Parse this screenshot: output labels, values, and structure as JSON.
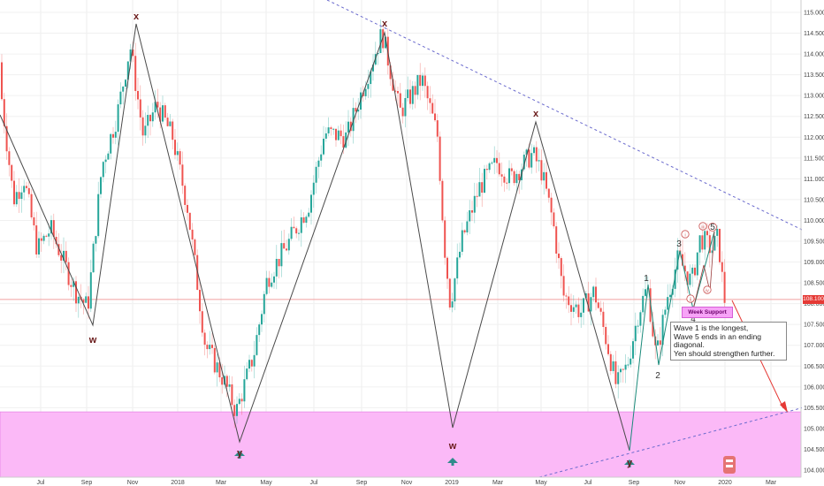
{
  "chart_data": {
    "type": "candlestick",
    "symbol_context": "USD/JPY",
    "x_tick_labels": [
      "Jul",
      "Sep",
      "Nov",
      "2018",
      "Mar",
      "May",
      "Jul",
      "Sep",
      "Nov",
      "2019",
      "Mar",
      "May",
      "Jul",
      "Sep",
      "Nov",
      "2020",
      "Mar"
    ],
    "y_tick_labels": [
      "104.000",
      "104.500",
      "105.000",
      "105.500",
      "106.000",
      "106.500",
      "107.000",
      "107.500",
      "108.000",
      "108.500",
      "109.000",
      "109.500",
      "110.000",
      "110.500",
      "111.000",
      "111.500",
      "112.000",
      "112.500",
      "113.000",
      "113.500",
      "114.000",
      "114.500",
      "115.000"
    ],
    "ylim": [
      104.0,
      115.0
    ],
    "current_price": "108.100",
    "key_points": [
      {
        "label": "x",
        "date": "2017-10",
        "price": 114.7
      },
      {
        "label": "w",
        "date": "2017-09",
        "price": 107.3
      },
      {
        "label": "y",
        "date": "2018-03",
        "price": 104.6
      },
      {
        "label": "x",
        "date": "2018-10",
        "price": 114.6
      },
      {
        "label": "w",
        "date": "2019-01",
        "price": 104.9
      },
      {
        "label": "x",
        "date": "2019-04",
        "price": 112.4
      },
      {
        "label": "y",
        "date": "2019-08",
        "price": 104.5
      }
    ],
    "wave_labels": [
      "1",
      "2",
      "3",
      "4",
      "5",
      "i",
      "ii",
      "iii",
      "iv",
      "v"
    ],
    "support_zone": {
      "low": 104.0,
      "high": 105.4
    },
    "annotations": {
      "support_label": "Week Support",
      "note_lines": [
        "Wave 1 is the longest,",
        "Wave 5 ends in an ending diagonal.",
        "Yen should strengthen further."
      ]
    },
    "colors": {
      "up": "#26a69a",
      "down": "#ef5350",
      "zone": "#fbb9f7",
      "wave_line": "#4a4a4a",
      "trend_dash": "#6a6acd",
      "arrow": "#e53935",
      "accent_arrow": "#2e8b8b"
    }
  }
}
